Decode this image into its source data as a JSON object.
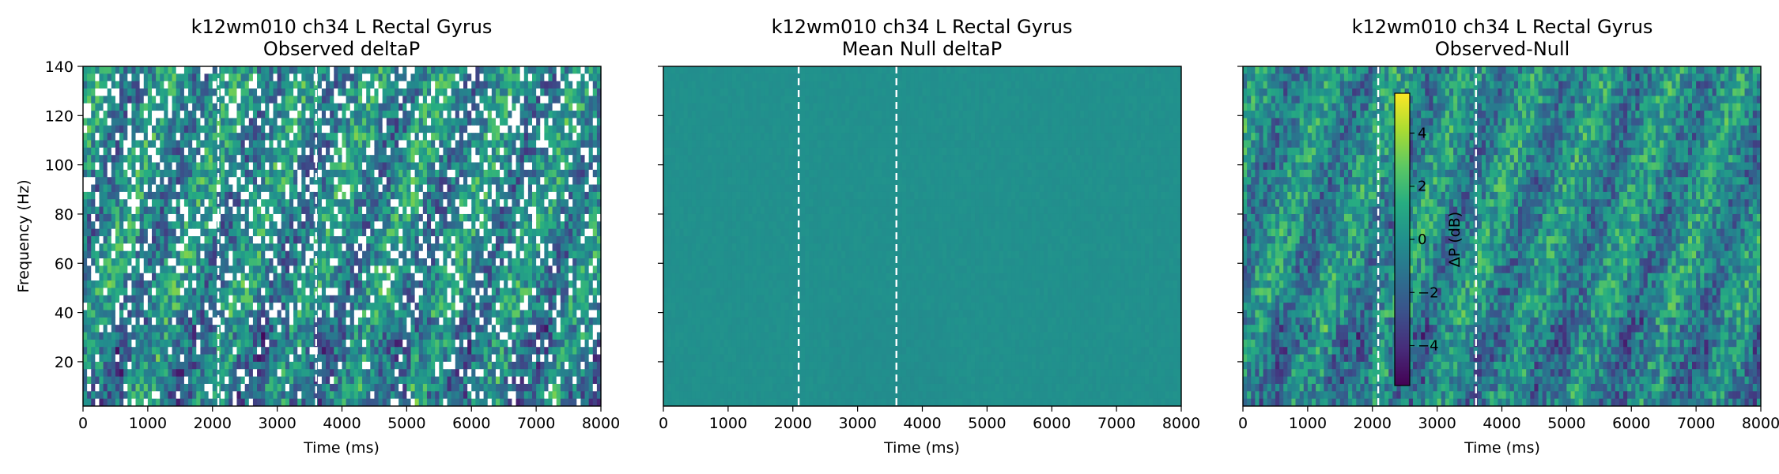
{
  "figure": {
    "panels": [
      {
        "title_line1": "k12wm010 ch34 L Rectal Gyrus",
        "title_line2": "Observed deltaP",
        "xlabel": "Time (ms)",
        "ylabel": "Frequency (Hz)"
      },
      {
        "title_line1": "k12wm010 ch34 L Rectal Gyrus",
        "title_line2": "Mean Null deltaP",
        "xlabel": "Time (ms)",
        "ylabel": ""
      },
      {
        "title_line1": "k12wm010 ch34 L Rectal Gyrus",
        "title_line2": "Observed-Null",
        "xlabel": "Time (ms)",
        "ylabel": ""
      }
    ],
    "colorbar_label": "ΔP (dB)"
  },
  "chart_data": [
    {
      "type": "heatmap",
      "title": "k12wm010 ch34 L Rectal Gyrus\nObserved deltaP",
      "xlabel": "Time (ms)",
      "ylabel": "Frequency (Hz)",
      "xlim": [
        0,
        8000
      ],
      "ylim": [
        2,
        140
      ],
      "xticks": [
        0,
        1000,
        2000,
        3000,
        4000,
        5000,
        6000,
        7000,
        8000
      ],
      "yticks": [
        20,
        40,
        60,
        80,
        100,
        120,
        140
      ],
      "vlines_ms": [
        2090,
        3600
      ],
      "colormap": "viridis",
      "masked_cells": "white (non-significant bins masked)",
      "value_range_db": [
        -5,
        5
      ]
    },
    {
      "type": "heatmap",
      "title": "k12wm010 ch34 L Rectal Gyrus\nMean Null deltaP",
      "xlabel": "Time (ms)",
      "xlim": [
        0,
        8000
      ],
      "ylim": [
        2,
        140
      ],
      "xticks": [
        0,
        1000,
        2000,
        3000,
        4000,
        5000,
        6000,
        7000,
        8000
      ],
      "yticks": [
        20,
        40,
        60,
        80,
        100,
        120,
        140
      ],
      "vlines_ms": [
        2090,
        3600
      ],
      "colormap": "viridis",
      "approx_value_db": 0
    },
    {
      "type": "heatmap",
      "title": "k12wm010 ch34 L Rectal Gyrus\nObserved-Null",
      "xlabel": "Time (ms)",
      "xlim": [
        0,
        8000
      ],
      "ylim": [
        2,
        140
      ],
      "xticks": [
        0,
        1000,
        2000,
        3000,
        4000,
        5000,
        6000,
        7000,
        8000
      ],
      "yticks": [
        20,
        40,
        60,
        80,
        100,
        120,
        140
      ],
      "vlines_ms": [
        2090,
        3600
      ],
      "colormap": "viridis",
      "colorbar": {
        "label": "ΔP (dB)",
        "ticks": [
          -4,
          -2,
          0,
          2,
          4
        ],
        "range": [
          -5.5,
          5.5
        ]
      }
    }
  ]
}
